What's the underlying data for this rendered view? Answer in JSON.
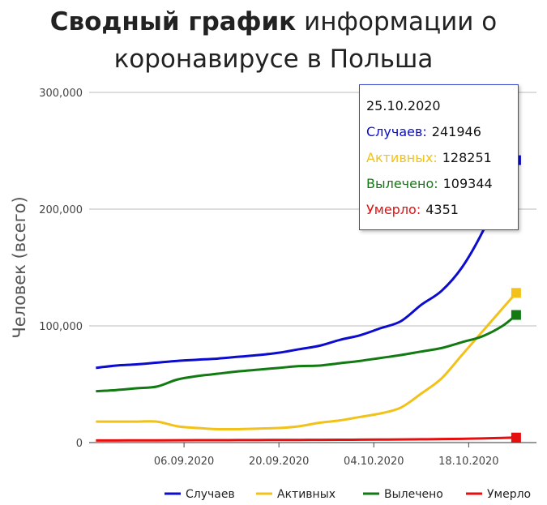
{
  "title": {
    "bold": "Сводный график",
    "rest": "информации о",
    "line2": "коронавирусе в Польша"
  },
  "chart_data": {
    "type": "line",
    "title": "Сводный график информации о коронавирусе в Польша",
    "xlabel": "",
    "ylabel": "Человек (всего)",
    "ylim": [
      0,
      300000
    ],
    "yticks": [
      0,
      100000,
      200000,
      300000
    ],
    "ytick_labels": [
      "0",
      "100,000",
      "200,000",
      "300,000"
    ],
    "xlim": [
      "2020-08-23",
      "2020-10-28"
    ],
    "xticks": [
      "2020-09-06",
      "2020-09-20",
      "2020-10-04",
      "2020-10-18"
    ],
    "xtick_labels": [
      "06.09.2020",
      "20.09.2020",
      "04.10.2020",
      "18.10.2020"
    ],
    "grid": true,
    "legend_position": "bottom-right",
    "x": [
      "2020-08-24",
      "2020-08-27",
      "2020-08-30",
      "2020-09-02",
      "2020-09-05",
      "2020-09-08",
      "2020-09-11",
      "2020-09-14",
      "2020-09-17",
      "2020-09-20",
      "2020-09-23",
      "2020-09-26",
      "2020-09-29",
      "2020-10-02",
      "2020-10-05",
      "2020-10-08",
      "2020-10-11",
      "2020-10-14",
      "2020-10-17",
      "2020-10-20",
      "2020-10-23",
      "2020-10-25"
    ],
    "series": [
      {
        "name": "Случаев",
        "color": "#0c0ccf",
        "values": [
          64000,
          66000,
          67000,
          68500,
          70000,
          71000,
          72000,
          73500,
          75000,
          77000,
          80000,
          83000,
          88000,
          92000,
          98000,
          104000,
          118000,
          130000,
          150000,
          180000,
          218000,
          241946
        ]
      },
      {
        "name": "Активных",
        "color": "#f2c21b",
        "values": [
          18000,
          18000,
          18000,
          18000,
          14000,
          12500,
          11500,
          11500,
          12000,
          12500,
          14000,
          17000,
          19000,
          22000,
          25000,
          30000,
          42000,
          55000,
          75000,
          95000,
          115000,
          128251
        ]
      },
      {
        "name": "Вылечено",
        "color": "#127a12",
        "values": [
          44000,
          45000,
          46500,
          48000,
          54000,
          57000,
          59000,
          61000,
          62500,
          64000,
          65500,
          66000,
          68000,
          70000,
          72500,
          75000,
          78000,
          81000,
          86000,
          91000,
          100000,
          109344
        ]
      },
      {
        "name": "Умерло",
        "color": "#e60f0f",
        "values": [
          1800,
          1850,
          1900,
          1950,
          2000,
          2050,
          2100,
          2150,
          2200,
          2250,
          2300,
          2350,
          2400,
          2500,
          2600,
          2700,
          2850,
          3000,
          3250,
          3550,
          4000,
          4351
        ]
      }
    ],
    "tooltip": {
      "date": "25.10.2020",
      "rows": [
        {
          "label": "Случаев:",
          "value": "241946",
          "color": "#0c0ccf"
        },
        {
          "label": "Активных:",
          "value": "128251",
          "color": "#f2c21b"
        },
        {
          "label": "Вылечено:",
          "value": "109344",
          "color": "#127a12"
        },
        {
          "label": "Умерло:",
          "value": "4351",
          "color": "#e60f0f"
        }
      ]
    }
  }
}
